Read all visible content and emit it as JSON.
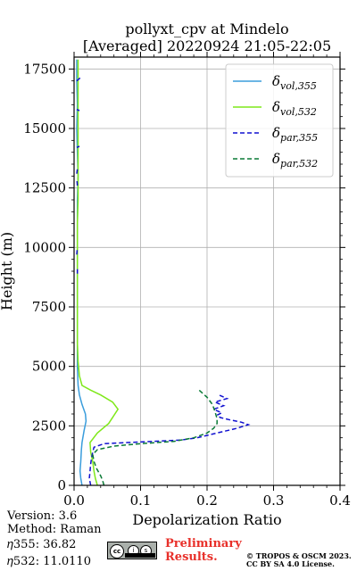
{
  "chart_data": {
    "type": "line",
    "title": "pollyxt_cpv at Mindelo",
    "subtitle": "[Averaged] 20220924 21:05-22:05",
    "xlabel": "Depolarization Ratio",
    "ylabel": "Height (m)",
    "xlim": [
      0,
      0.4
    ],
    "ylim": [
      0,
      18000
    ],
    "xticks": [
      "0.0",
      "0.1",
      "0.2",
      "0.3",
      "0.4"
    ],
    "yticks": [
      "0",
      "2500",
      "5000",
      "7500",
      "10000",
      "12500",
      "15000",
      "17500"
    ],
    "grid": true,
    "legend_position": "upper-right",
    "series": [
      {
        "name": "vol,355",
        "color": "#3a9ddc",
        "dash": "solid",
        "points": [
          [
            0.012,
            0
          ],
          [
            0.01,
            300
          ],
          [
            0.009,
            600
          ],
          [
            0.01,
            1000
          ],
          [
            0.011,
            1500
          ],
          [
            0.012,
            1800
          ],
          [
            0.015,
            2300
          ],
          [
            0.018,
            2700
          ],
          [
            0.017,
            3000
          ],
          [
            0.012,
            3400
          ],
          [
            0.008,
            3800
          ],
          [
            0.006,
            4200
          ],
          [
            0.005,
            5000
          ],
          [
            0.005,
            6000
          ],
          [
            0.005,
            7000
          ],
          [
            0.005,
            8000
          ],
          [
            0.005,
            9000
          ],
          [
            0.005,
            10000
          ],
          [
            0.005,
            11000
          ],
          [
            0.005,
            12000
          ],
          [
            0.006,
            13000
          ],
          [
            0.005,
            14000
          ],
          [
            0.004,
            15000
          ],
          [
            0.005,
            16000
          ],
          [
            0.004,
            17000
          ],
          [
            0.004,
            17900
          ]
        ]
      },
      {
        "name": "vol,532",
        "color": "#7fe81a",
        "dash": "solid",
        "points": [
          [
            0.035,
            0
          ],
          [
            0.032,
            300
          ],
          [
            0.03,
            600
          ],
          [
            0.028,
            1000
          ],
          [
            0.025,
            1400
          ],
          [
            0.024,
            1800
          ],
          [
            0.035,
            2200
          ],
          [
            0.052,
            2600
          ],
          [
            0.066,
            3200
          ],
          [
            0.058,
            3500
          ],
          [
            0.04,
            3800
          ],
          [
            0.025,
            4000
          ],
          [
            0.012,
            4200
          ],
          [
            0.008,
            4600
          ],
          [
            0.006,
            5200
          ],
          [
            0.005,
            6000
          ],
          [
            0.005,
            7000
          ],
          [
            0.005,
            8000
          ],
          [
            0.005,
            9000
          ],
          [
            0.005,
            10000
          ],
          [
            0.005,
            11000
          ],
          [
            0.006,
            12000
          ],
          [
            0.006,
            13000
          ],
          [
            0.006,
            14000
          ],
          [
            0.006,
            15000
          ],
          [
            0.006,
            16000
          ],
          [
            0.006,
            17000
          ],
          [
            0.006,
            17900
          ]
        ]
      },
      {
        "name": "par,355",
        "color": "#1010d0",
        "dash": "dashed",
        "points": [
          [
            0.025,
            0
          ],
          [
            0.023,
            300
          ],
          [
            0.024,
            600
          ],
          [
            0.025,
            900
          ],
          [
            0.026,
            1100
          ],
          [
            0.028,
            1400
          ],
          [
            0.03,
            1600
          ],
          [
            0.045,
            1750
          ],
          [
            0.08,
            1800
          ],
          [
            0.12,
            1850
          ],
          [
            0.16,
            1900
          ],
          [
            0.185,
            2000
          ],
          [
            0.2,
            2100
          ],
          [
            0.215,
            2200
          ],
          [
            0.23,
            2300
          ],
          [
            0.245,
            2400
          ],
          [
            0.262,
            2550
          ],
          [
            0.252,
            2650
          ],
          [
            0.235,
            2750
          ],
          [
            0.22,
            2850
          ],
          [
            0.215,
            2950
          ],
          [
            0.222,
            3050
          ],
          [
            0.21,
            3200
          ],
          [
            0.225,
            3350
          ],
          [
            0.212,
            3500
          ],
          [
            0.23,
            3650
          ],
          [
            0.218,
            3800
          ]
        ],
        "fragments": [
          [
            [
              0.005,
              8900
            ],
            [
              0.005,
              9200
            ]
          ],
          [
            [
              0.004,
              9700
            ],
            [
              0.005,
              10000
            ]
          ],
          [
            [
              0.005,
              12600
            ],
            [
              0.004,
              12900
            ]
          ],
          [
            [
              0.004,
              13100
            ],
            [
              0.005,
              13300
            ]
          ],
          [
            [
              0.004,
              14200
            ],
            [
              0.008,
              14250
            ]
          ],
          [
            [
              0.004,
              15800
            ],
            [
              0.008,
              15750
            ]
          ],
          [
            [
              0.004,
              17000
            ],
            [
              0.008,
              17100
            ],
            [
              0.012,
              17150
            ]
          ]
        ]
      },
      {
        "name": "par,532",
        "color": "#0a7a36",
        "dash": "dashed",
        "points": [
          [
            0.045,
            0
          ],
          [
            0.043,
            200
          ],
          [
            0.04,
            400
          ],
          [
            0.034,
            700
          ],
          [
            0.03,
            1000
          ],
          [
            0.028,
            1300
          ],
          [
            0.035,
            1500
          ],
          [
            0.06,
            1650
          ],
          [
            0.1,
            1750
          ],
          [
            0.15,
            1850
          ],
          [
            0.18,
            2000
          ],
          [
            0.2,
            2200
          ],
          [
            0.21,
            2400
          ],
          [
            0.215,
            2600
          ],
          [
            0.215,
            2800
          ],
          [
            0.212,
            3100
          ],
          [
            0.208,
            3400
          ],
          [
            0.2,
            3700
          ],
          [
            0.188,
            4000
          ]
        ]
      }
    ]
  },
  "info": {
    "version": "Version: 3.6",
    "method": "Method: Raman",
    "eta355": "𝜂355:  36.82",
    "eta532": "𝜂532: 11.0110"
  },
  "footer": {
    "prelim_line1": "Preliminary",
    "prelim_line2": "Results.",
    "copyright_line1": "© TROPOS & OSCM 2023.",
    "copyright_line2": "CC BY SA 4.0 License."
  }
}
